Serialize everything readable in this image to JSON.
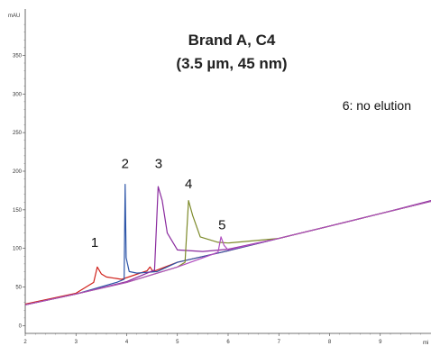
{
  "chart_data": {
    "type": "line",
    "title": "Brand A, C4",
    "subtitle": "(3.5 µm, 45 nm)",
    "annotation": "6: no elution",
    "ylabel": "mAU",
    "xlabel": "mi",
    "xlim": [
      2,
      10
    ],
    "ylim": [
      -10,
      410
    ],
    "grid": false,
    "x_ticks": [
      2,
      3,
      4,
      5,
      6,
      7,
      8,
      9
    ],
    "y_ticks": [
      0,
      50,
      100,
      150,
      200,
      250,
      300,
      350
    ],
    "peak_labels": [
      {
        "text": "1",
        "x": 3.37,
        "y": 102
      },
      {
        "text": "2",
        "x": 3.97,
        "y": 204
      },
      {
        "text": "3",
        "x": 4.63,
        "y": 204
      },
      {
        "text": "4",
        "x": 5.22,
        "y": 178
      },
      {
        "text": "5",
        "x": 5.88,
        "y": 125
      }
    ],
    "series": [
      {
        "color": "#d0201a",
        "x": [
          2.0,
          3.0,
          3.35,
          3.42,
          3.5,
          3.6,
          3.9,
          4.4,
          4.46,
          4.52,
          5.0,
          6.0,
          7.0,
          8.0,
          9.0,
          10.0
        ],
        "values": [
          28,
          42,
          56,
          76,
          67,
          63,
          60,
          71,
          76,
          70,
          82,
          97,
          113,
          129,
          145,
          161
        ]
      },
      {
        "color": "#2d55a8",
        "x": [
          2.0,
          3.0,
          3.8,
          3.95,
          3.97,
          3.99,
          4.05,
          4.2,
          4.6,
          5.0,
          6.0,
          7.0,
          8.0,
          9.0,
          10.0
        ],
        "values": [
          27,
          41,
          56,
          60,
          183,
          88,
          70,
          68,
          70,
          82,
          97,
          113,
          129,
          145,
          161
        ]
      },
      {
        "color": "#8a2a9e",
        "x": [
          2.0,
          3.0,
          4.0,
          4.55,
          4.62,
          4.7,
          4.8,
          5.0,
          5.5,
          6.0,
          7.0,
          8.0,
          9.0,
          10.0
        ],
        "values": [
          27,
          41,
          57,
          72,
          180,
          162,
          120,
          98,
          96,
          99,
          113,
          129,
          145,
          162
        ]
      },
      {
        "color": "#7d8a2a",
        "x": [
          2.0,
          3.0,
          4.0,
          5.0,
          5.15,
          5.22,
          5.3,
          5.45,
          5.8,
          6.0,
          7.0,
          8.0,
          9.0,
          10.0
        ],
        "values": [
          27,
          41,
          56,
          76,
          82,
          162,
          143,
          115,
          108,
          107,
          113,
          129,
          145,
          161
        ]
      },
      {
        "color": "#b04dbf",
        "x": [
          2.0,
          3.0,
          4.0,
          5.0,
          5.8,
          5.86,
          5.92,
          6.0,
          7.0,
          8.0,
          9.0,
          10.0
        ],
        "values": [
          27,
          41,
          56,
          76,
          95,
          115,
          104,
          98,
          113,
          129,
          145,
          161
        ]
      }
    ]
  }
}
